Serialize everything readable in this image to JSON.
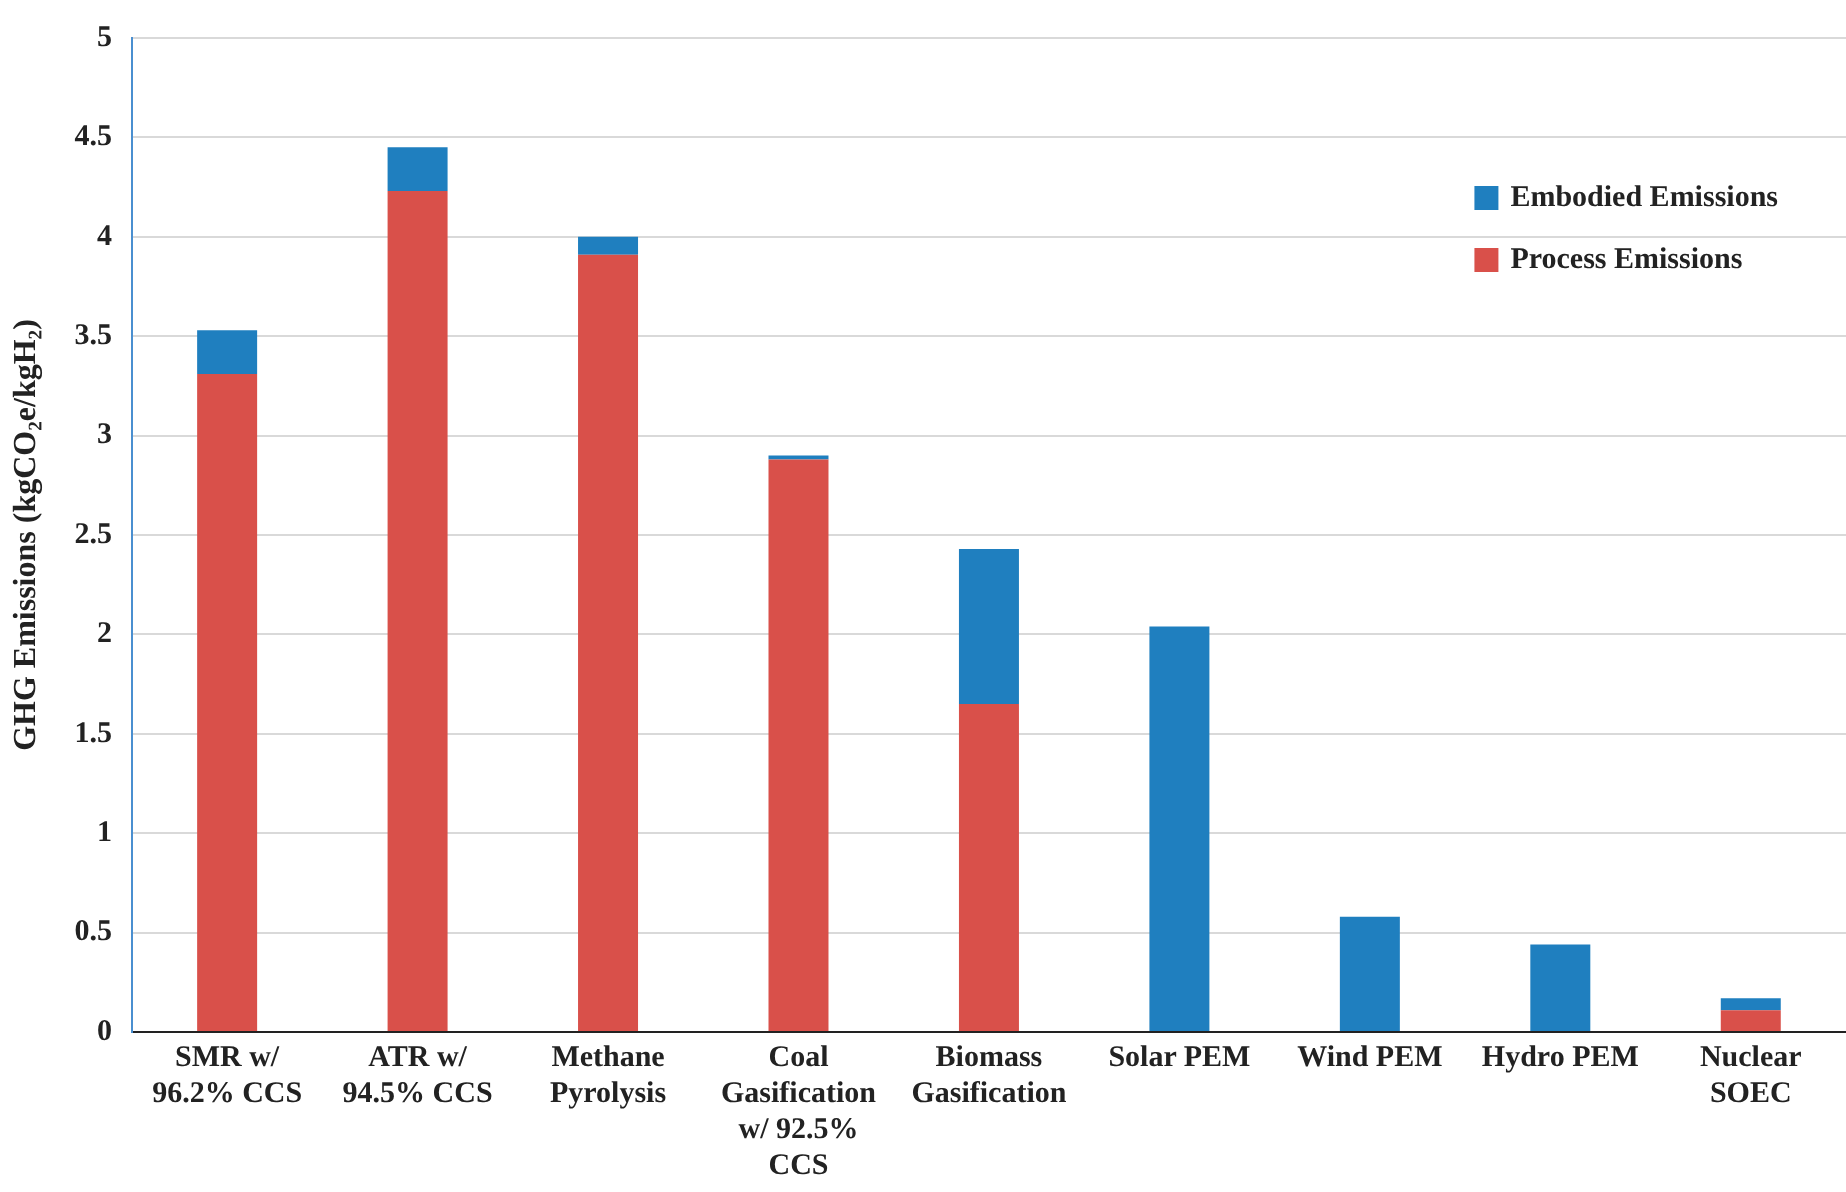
{
  "chart_data": {
    "type": "bar",
    "stacked": true,
    "ylabel": "GHG Emissions (kgCO₂e/kgH₂)",
    "categories": [
      "SMR w/ 96.2% CCS",
      "ATR w/ 94.5% CCS",
      "Methane Pyrolysis",
      "Coal Gasification w/ 92.5% CCS",
      "Biomass Gasification",
      "Solar PEM",
      "Wind PEM",
      "Hydro PEM",
      "Nuclear SOEC"
    ],
    "series": [
      {
        "name": "Process Emissions",
        "color": "#d9504a",
        "values": [
          3.31,
          4.23,
          3.91,
          2.88,
          1.65,
          0,
          0,
          0,
          0.11
        ]
      },
      {
        "name": "Embodied Emissions",
        "color": "#1f7fbf",
        "values": [
          0.22,
          0.22,
          0.09,
          0.02,
          0.78,
          2.04,
          0.58,
          0.44,
          0.06
        ]
      }
    ],
    "ylim": [
      0,
      5
    ],
    "yticks": [
      0,
      0.5,
      1,
      1.5,
      2,
      2.5,
      3,
      3.5,
      4,
      4.5,
      5
    ],
    "grid": "y",
    "legend": "top right"
  }
}
